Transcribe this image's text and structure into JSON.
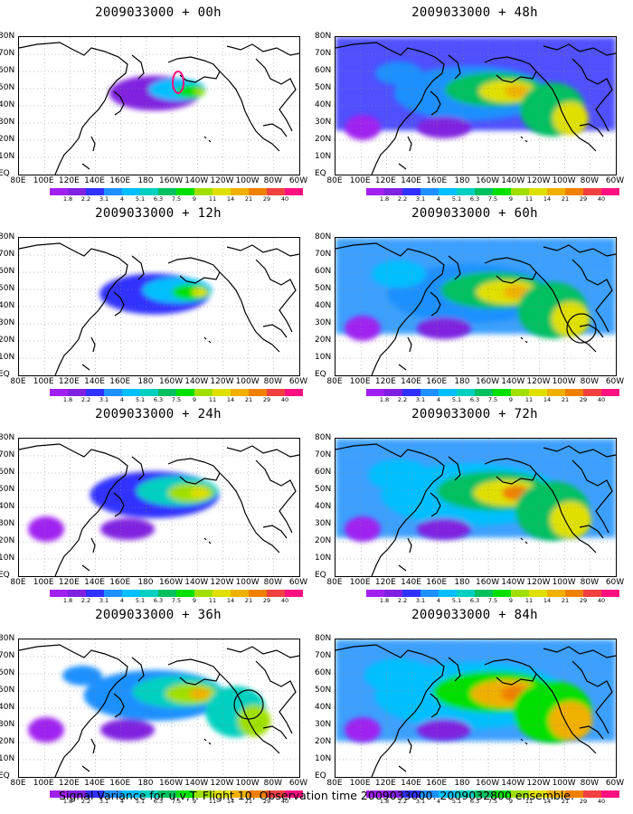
{
  "caption": "Signal Variance for u,v,T. Flight 10. Observation time 2009033000. 2009032800 ensemble.",
  "panels": [
    {
      "title": "2009033000 + 00h",
      "col": 0,
      "row": 0,
      "intensity": 0.15,
      "circle": false
    },
    {
      "title": "2009033000 + 48h",
      "col": 1,
      "row": 0,
      "intensity": 0.65,
      "circle": false
    },
    {
      "title": "2009033000 + 12h",
      "col": 0,
      "row": 1,
      "intensity": 0.3,
      "circle": false
    },
    {
      "title": "2009033000 + 60h",
      "col": 1,
      "row": 1,
      "intensity": 0.75,
      "circle": true
    },
    {
      "title": "2009033000 + 24h",
      "col": 0,
      "row": 2,
      "intensity": 0.45,
      "circle": false
    },
    {
      "title": "2009033000 + 72h",
      "col": 1,
      "row": 2,
      "intensity": 0.85,
      "circle": false
    },
    {
      "title": "2009033000 + 36h",
      "col": 0,
      "row": 3,
      "intensity": 0.55,
      "circle": true
    },
    {
      "title": "2009033000 + 84h",
      "col": 1,
      "row": 3,
      "intensity": 0.95,
      "circle": false
    }
  ],
  "lat_labels": [
    "80N",
    "70N",
    "60N",
    "50N",
    "40N",
    "30N",
    "20N",
    "10N",
    "EQ"
  ],
  "lon_labels": [
    "80E",
    "100E",
    "120E",
    "140E",
    "160E",
    "180",
    "160W",
    "140W",
    "120W",
    "100W",
    "80W",
    "60W"
  ],
  "colorbar": {
    "labels": [
      "1.8",
      "2.2",
      "3.1",
      "4",
      "5.1",
      "6.3",
      "7.5",
      "9",
      "11",
      "14",
      "21",
      "29",
      "40"
    ],
    "colors": [
      "#a020f0",
      "#8020e0",
      "#3030ff",
      "#1e90ff",
      "#00bfff",
      "#00d0c0",
      "#00c060",
      "#00e000",
      "#a0e000",
      "#e0e000",
      "#f0b000",
      "#f08000",
      "#f04040",
      "#ff1080"
    ]
  }
}
